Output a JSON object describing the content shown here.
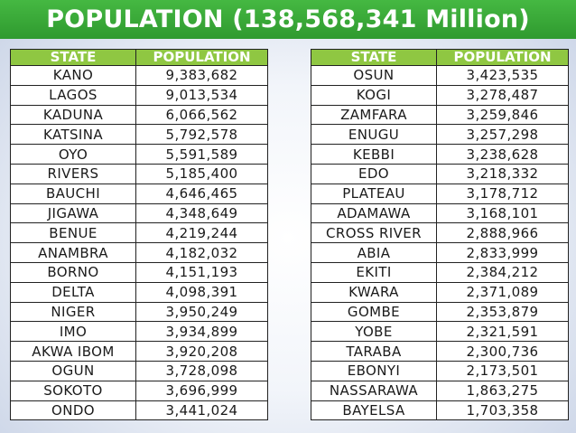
{
  "title": "POPULATION (138,568,341 Million)",
  "colors": {
    "title_bar": "#3aa83a",
    "header_bg": "#8fc742"
  },
  "left_table": {
    "headers": [
      "STATE",
      "POPULATION"
    ],
    "rows": [
      [
        "KANO",
        "9,383,682"
      ],
      [
        "LAGOS",
        "9,013,534"
      ],
      [
        "KADUNA",
        "6,066,562"
      ],
      [
        "KATSINA",
        "5,792,578"
      ],
      [
        "OYO",
        "5,591,589"
      ],
      [
        "RIVERS",
        "5,185,400"
      ],
      [
        "BAUCHI",
        "4,646,465"
      ],
      [
        "JIGAWA",
        "4,348,649"
      ],
      [
        "BENUE",
        "4,219,244"
      ],
      [
        "ANAMBRA",
        "4,182,032"
      ],
      [
        "BORNO",
        "4,151,193"
      ],
      [
        "DELTA",
        "4,098,391"
      ],
      [
        "NIGER",
        "3,950,249"
      ],
      [
        "IMO",
        "3,934,899"
      ],
      [
        "AKWA IBOM",
        "3,920,208"
      ],
      [
        "OGUN",
        "3,728,098"
      ],
      [
        "SOKOTO",
        "3,696,999"
      ],
      [
        "ONDO",
        "3,441,024"
      ]
    ]
  },
  "right_table": {
    "headers": [
      "STATE",
      "POPULATION"
    ],
    "rows": [
      [
        "OSUN",
        "3,423,535"
      ],
      [
        "KOGI",
        "3,278,487"
      ],
      [
        "ZAMFARA",
        "3,259,846"
      ],
      [
        "ENUGU",
        "3,257,298"
      ],
      [
        "KEBBI",
        "3,238,628"
      ],
      [
        "EDO",
        "3,218,332"
      ],
      [
        "PLATEAU",
        "3,178,712"
      ],
      [
        "ADAMAWA",
        "3,168,101"
      ],
      [
        "CROSS RIVER",
        "2,888,966"
      ],
      [
        "ABIA",
        "2,833,999"
      ],
      [
        "EKITI",
        "2,384,212"
      ],
      [
        "KWARA",
        "2,371,089"
      ],
      [
        "GOMBE",
        "2,353,879"
      ],
      [
        "YOBE",
        "2,321,591"
      ],
      [
        "TARABA",
        "2,300,736"
      ],
      [
        "EBONYI",
        "2,173,501"
      ],
      [
        "NASSARAWA",
        "1,863,275"
      ],
      [
        "BAYELSA",
        "1,703,358"
      ]
    ]
  }
}
